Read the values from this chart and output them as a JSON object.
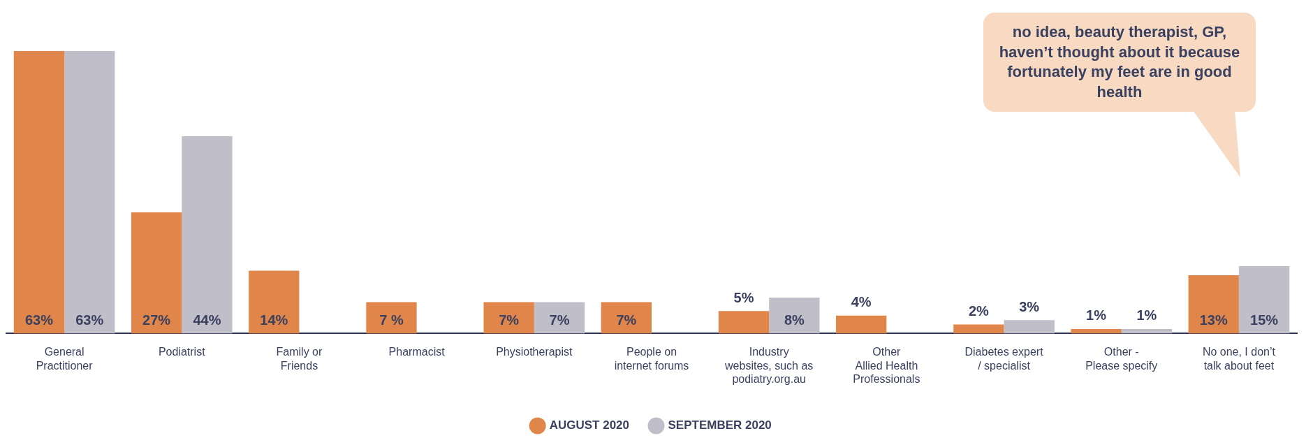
{
  "chart_data": {
    "type": "bar",
    "categories": [
      "General\nPractitioner",
      "Podiatrist",
      "Family or\nFriends",
      "Pharmacist",
      "Physiotherapist",
      "People on\ninternet forums",
      "Industry\nwebsites, such as\npodiatry.org.au",
      "Other\nAllied Health\nProfessionals",
      "Diabetes expert\n/ specialist",
      "Other -\nPlease specify",
      "No one, I don’t\ntalk about feet"
    ],
    "series": [
      {
        "name": "AUGUST 2020",
        "color": "#e0864a",
        "values": [
          63,
          27,
          14,
          7,
          7,
          7,
          5,
          4,
          2,
          1,
          13
        ],
        "value_labels": [
          "63%",
          "27%",
          "14%",
          "7 %",
          "7%",
          "7%",
          "5%",
          "4%",
          "2%",
          "1%",
          "13%"
        ]
      },
      {
        "name": "SEPTEMBER 2020",
        "color": "#c0bec8",
        "values": [
          63,
          44,
          null,
          null,
          7,
          null,
          8,
          null,
          3,
          1,
          15
        ],
        "value_labels": [
          "63%",
          "44%",
          null,
          null,
          "7%",
          null,
          "8%",
          null,
          "3%",
          "1%",
          "15%"
        ]
      }
    ],
    "legend": "bottom",
    "grid": false,
    "annotations": [
      "no idea, beauty therapist, GP, haven’t thought about it because fortunately my feet are in good health"
    ]
  }
}
